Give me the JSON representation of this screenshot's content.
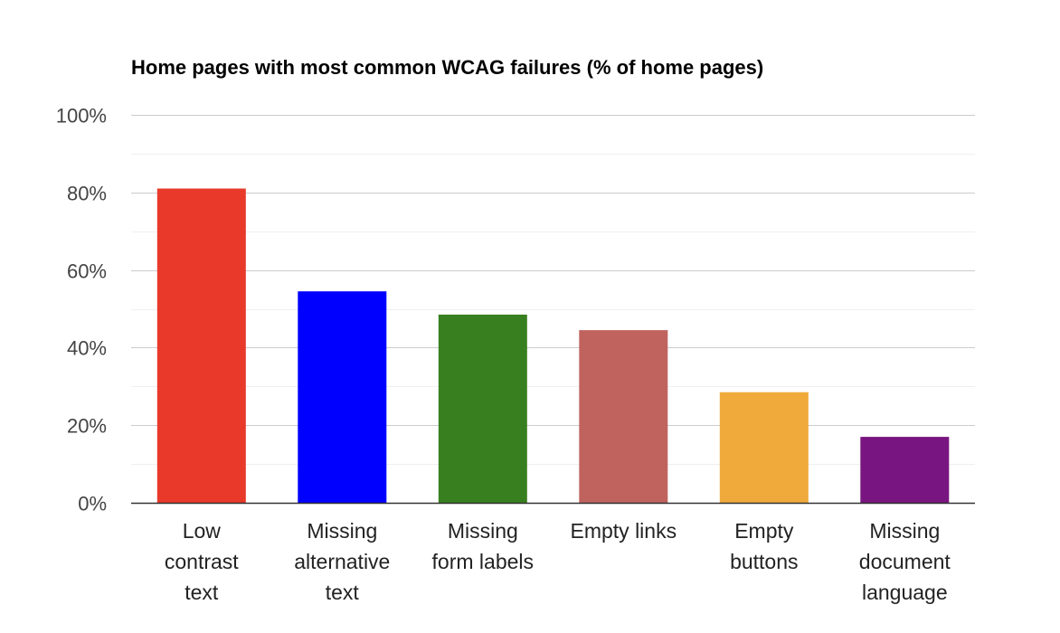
{
  "chart_data": {
    "type": "bar",
    "title": "Home pages with most common WCAG failures (% of home pages)",
    "xlabel": "",
    "ylabel": "",
    "categories": [
      [
        "Low",
        "contrast",
        "text"
      ],
      [
        "Missing",
        "alternative",
        "text"
      ],
      [
        "Missing",
        "form labels"
      ],
      [
        "Empty links"
      ],
      [
        "Empty",
        "buttons"
      ],
      [
        "Missing",
        "document",
        "language"
      ]
    ],
    "values": [
      81,
      54.5,
      48.5,
      44.5,
      28.5,
      17
    ],
    "colors": [
      "#e8392a",
      "#0000ff",
      "#38801f",
      "#c0635f",
      "#f0aa3b",
      "#791580"
    ],
    "ylim": [
      0,
      100
    ],
    "yticks": [
      0,
      20,
      40,
      60,
      80,
      100
    ],
    "ytick_labels": [
      "0%",
      "20%",
      "40%",
      "60%",
      "80%",
      "100%"
    ],
    "grid": true,
    "legend": "none"
  }
}
